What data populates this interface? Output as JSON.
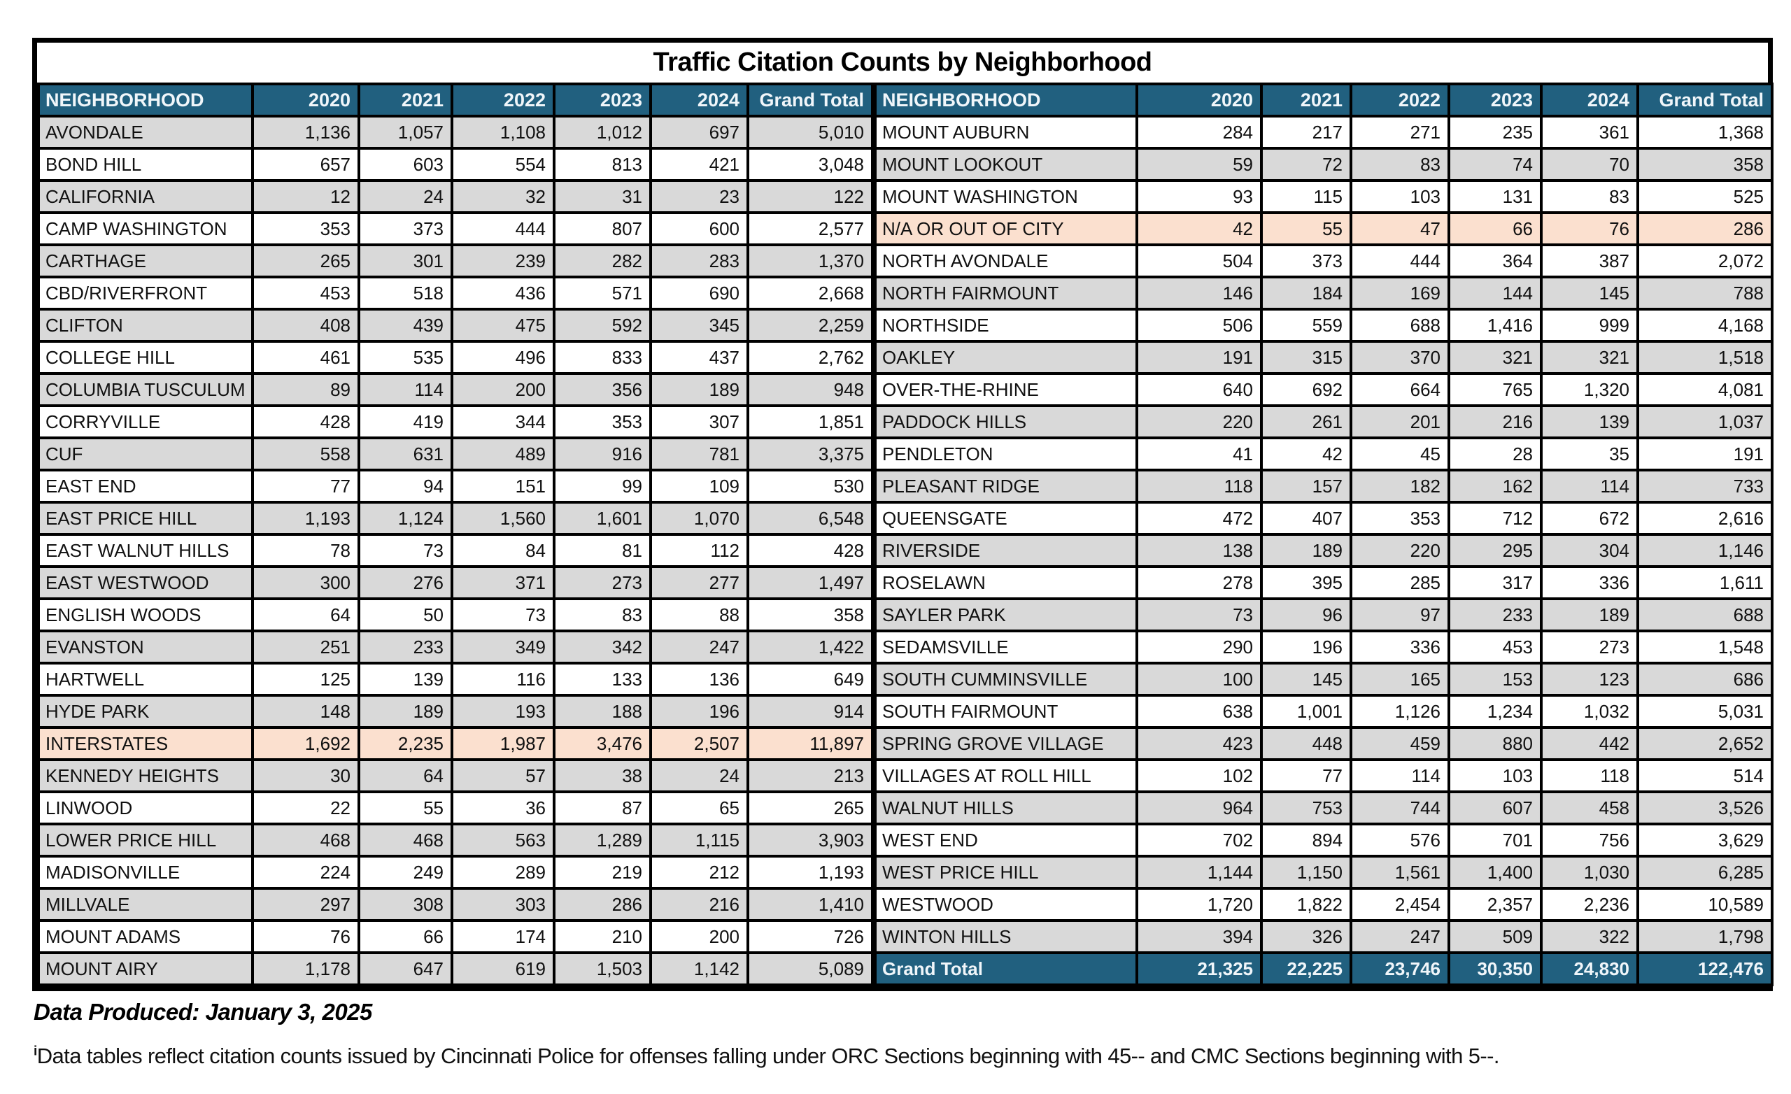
{
  "title": "Traffic Citation Counts by Neighborhood",
  "columns": [
    "NEIGHBORHOOD",
    "2020",
    "2021",
    "2022",
    "2023",
    "2024",
    "Grand Total"
  ],
  "tables": [
    {
      "first_row_shade": "gray",
      "rows": [
        {
          "name": "AVONDALE",
          "values": [
            "1,136",
            "1,057",
            "1,108",
            "1,012",
            "697",
            "5,010"
          ]
        },
        {
          "name": "BOND HILL",
          "values": [
            "657",
            "603",
            "554",
            "813",
            "421",
            "3,048"
          ]
        },
        {
          "name": "CALIFORNIA",
          "values": [
            "12",
            "24",
            "32",
            "31",
            "23",
            "122"
          ]
        },
        {
          "name": "CAMP WASHINGTON",
          "values": [
            "353",
            "373",
            "444",
            "807",
            "600",
            "2,577"
          ]
        },
        {
          "name": "CARTHAGE",
          "values": [
            "265",
            "301",
            "239",
            "282",
            "283",
            "1,370"
          ]
        },
        {
          "name": "CBD/RIVERFRONT",
          "values": [
            "453",
            "518",
            "436",
            "571",
            "690",
            "2,668"
          ]
        },
        {
          "name": "CLIFTON",
          "values": [
            "408",
            "439",
            "475",
            "592",
            "345",
            "2,259"
          ]
        },
        {
          "name": "COLLEGE HILL",
          "values": [
            "461",
            "535",
            "496",
            "833",
            "437",
            "2,762"
          ]
        },
        {
          "name": "COLUMBIA TUSCULUM",
          "values": [
            "89",
            "114",
            "200",
            "356",
            "189",
            "948"
          ]
        },
        {
          "name": "CORRYVILLE",
          "values": [
            "428",
            "419",
            "344",
            "353",
            "307",
            "1,851"
          ]
        },
        {
          "name": "CUF",
          "values": [
            "558",
            "631",
            "489",
            "916",
            "781",
            "3,375"
          ]
        },
        {
          "name": "EAST END",
          "values": [
            "77",
            "94",
            "151",
            "99",
            "109",
            "530"
          ]
        },
        {
          "name": "EAST PRICE HILL",
          "values": [
            "1,193",
            "1,124",
            "1,560",
            "1,601",
            "1,070",
            "6,548"
          ]
        },
        {
          "name": "EAST WALNUT HILLS",
          "values": [
            "78",
            "73",
            "84",
            "81",
            "112",
            "428"
          ]
        },
        {
          "name": "EAST WESTWOOD",
          "values": [
            "300",
            "276",
            "371",
            "273",
            "277",
            "1,497"
          ]
        },
        {
          "name": "ENGLISH WOODS",
          "values": [
            "64",
            "50",
            "73",
            "83",
            "88",
            "358"
          ]
        },
        {
          "name": "EVANSTON",
          "values": [
            "251",
            "233",
            "349",
            "342",
            "247",
            "1,422"
          ]
        },
        {
          "name": "HARTWELL",
          "values": [
            "125",
            "139",
            "116",
            "133",
            "136",
            "649"
          ]
        },
        {
          "name": "HYDE PARK",
          "values": [
            "148",
            "189",
            "193",
            "188",
            "196",
            "914"
          ]
        },
        {
          "name": "INTERSTATES",
          "values": [
            "1,692",
            "2,235",
            "1,987",
            "3,476",
            "2,507",
            "11,897"
          ],
          "highlight": true
        },
        {
          "name": "KENNEDY HEIGHTS",
          "values": [
            "30",
            "64",
            "57",
            "38",
            "24",
            "213"
          ]
        },
        {
          "name": "LINWOOD",
          "values": [
            "22",
            "55",
            "36",
            "87",
            "65",
            "265"
          ]
        },
        {
          "name": "LOWER PRICE HILL",
          "values": [
            "468",
            "468",
            "563",
            "1,289",
            "1,115",
            "3,903"
          ]
        },
        {
          "name": "MADISONVILLE",
          "values": [
            "224",
            "249",
            "289",
            "219",
            "212",
            "1,193"
          ]
        },
        {
          "name": "MILLVALE",
          "values": [
            "297",
            "308",
            "303",
            "286",
            "216",
            "1,410"
          ]
        },
        {
          "name": "MOUNT ADAMS",
          "values": [
            "76",
            "66",
            "174",
            "210",
            "200",
            "726"
          ]
        },
        {
          "name": "MOUNT AIRY",
          "values": [
            "1,178",
            "647",
            "619",
            "1,503",
            "1,142",
            "5,089"
          ]
        }
      ]
    },
    {
      "first_row_shade": "white",
      "rows": [
        {
          "name": "MOUNT AUBURN",
          "values": [
            "284",
            "217",
            "271",
            "235",
            "361",
            "1,368"
          ]
        },
        {
          "name": "MOUNT LOOKOUT",
          "values": [
            "59",
            "72",
            "83",
            "74",
            "70",
            "358"
          ]
        },
        {
          "name": "MOUNT WASHINGTON",
          "values": [
            "93",
            "115",
            "103",
            "131",
            "83",
            "525"
          ]
        },
        {
          "name": "N/A OR OUT OF CITY",
          "values": [
            "42",
            "55",
            "47",
            "66",
            "76",
            "286"
          ],
          "highlight": true
        },
        {
          "name": "NORTH AVONDALE",
          "values": [
            "504",
            "373",
            "444",
            "364",
            "387",
            "2,072"
          ]
        },
        {
          "name": "NORTH FAIRMOUNT",
          "values": [
            "146",
            "184",
            "169",
            "144",
            "145",
            "788"
          ]
        },
        {
          "name": "NORTHSIDE",
          "values": [
            "506",
            "559",
            "688",
            "1,416",
            "999",
            "4,168"
          ]
        },
        {
          "name": "OAKLEY",
          "values": [
            "191",
            "315",
            "370",
            "321",
            "321",
            "1,518"
          ]
        },
        {
          "name": "OVER-THE-RHINE",
          "values": [
            "640",
            "692",
            "664",
            "765",
            "1,320",
            "4,081"
          ]
        },
        {
          "name": "PADDOCK HILLS",
          "values": [
            "220",
            "261",
            "201",
            "216",
            "139",
            "1,037"
          ]
        },
        {
          "name": "PENDLETON",
          "values": [
            "41",
            "42",
            "45",
            "28",
            "35",
            "191"
          ]
        },
        {
          "name": "PLEASANT RIDGE",
          "values": [
            "118",
            "157",
            "182",
            "162",
            "114",
            "733"
          ]
        },
        {
          "name": "QUEENSGATE",
          "values": [
            "472",
            "407",
            "353",
            "712",
            "672",
            "2,616"
          ]
        },
        {
          "name": "RIVERSIDE",
          "values": [
            "138",
            "189",
            "220",
            "295",
            "304",
            "1,146"
          ]
        },
        {
          "name": "ROSELAWN",
          "values": [
            "278",
            "395",
            "285",
            "317",
            "336",
            "1,611"
          ]
        },
        {
          "name": "SAYLER PARK",
          "values": [
            "73",
            "96",
            "97",
            "233",
            "189",
            "688"
          ]
        },
        {
          "name": "SEDAMSVILLE",
          "values": [
            "290",
            "196",
            "336",
            "453",
            "273",
            "1,548"
          ]
        },
        {
          "name": "SOUTH CUMMINSVILLE",
          "values": [
            "100",
            "145",
            "165",
            "153",
            "123",
            "686"
          ]
        },
        {
          "name": "SOUTH FAIRMOUNT",
          "values": [
            "638",
            "1,001",
            "1,126",
            "1,234",
            "1,032",
            "5,031"
          ]
        },
        {
          "name": "SPRING GROVE VILLAGE",
          "values": [
            "423",
            "448",
            "459",
            "880",
            "442",
            "2,652"
          ]
        },
        {
          "name": "VILLAGES AT ROLL HILL",
          "values": [
            "102",
            "77",
            "114",
            "103",
            "118",
            "514"
          ]
        },
        {
          "name": "WALNUT HILLS",
          "values": [
            "964",
            "753",
            "744",
            "607",
            "458",
            "3,526"
          ]
        },
        {
          "name": "WEST END",
          "values": [
            "702",
            "894",
            "576",
            "701",
            "756",
            "3,629"
          ]
        },
        {
          "name": "WEST PRICE HILL",
          "values": [
            "1,144",
            "1,150",
            "1,561",
            "1,400",
            "1,030",
            "6,285"
          ]
        },
        {
          "name": "WESTWOOD",
          "values": [
            "1,720",
            "1,822",
            "2,454",
            "2,357",
            "2,236",
            "10,589"
          ]
        },
        {
          "name": "WINTON HILLS",
          "values": [
            "394",
            "326",
            "247",
            "509",
            "322",
            "1,798"
          ]
        }
      ],
      "grand_total": {
        "label": "Grand Total",
        "values": [
          "21,325",
          "22,225",
          "23,746",
          "30,350",
          "24,830",
          "122,476"
        ]
      }
    }
  ],
  "footer": {
    "produced": "Data Produced: January 3, 2025",
    "footnote_marker": "i",
    "footnote": "Data tables reflect citation counts issued by Cincinnati Police for offenses falling under ORC Sections beginning with 45-- and CMC Sections beginning with 5--."
  },
  "colors": {
    "header_bg": "#21607f",
    "header_text": "#f0f6fa",
    "row_gray": "#d9d9d9",
    "row_white": "#ffffff",
    "highlight": "#fbe0cf",
    "border": "#000000"
  }
}
